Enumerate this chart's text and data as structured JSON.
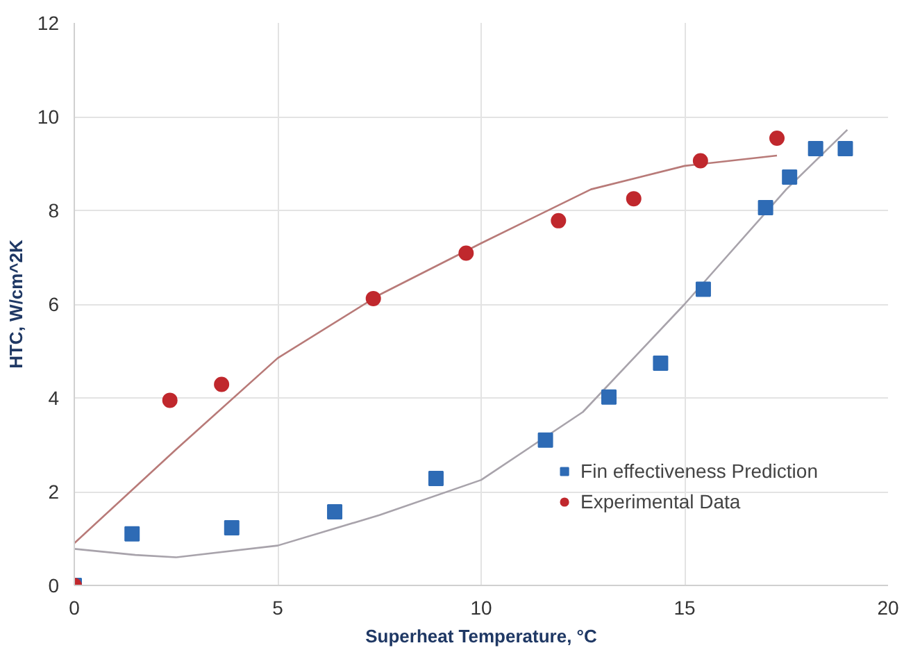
{
  "chart_data": {
    "type": "scatter",
    "xlabel": "Superheat Temperature, °C",
    "ylabel": "HTC, W/cm^2K",
    "xlim": [
      0,
      20
    ],
    "ylim": [
      0,
      12
    ],
    "xticks": [
      0,
      5,
      10,
      15,
      20
    ],
    "yticks": [
      0,
      2,
      4,
      6,
      8,
      10,
      12
    ],
    "grid": true,
    "legend": "bottom right",
    "series": [
      {
        "type": "line",
        "color": "#a8a3ab",
        "marker": "none",
        "x": [
          0,
          1.5,
          2.5,
          5,
          7.5,
          10,
          12.5,
          15,
          17.5,
          19
        ],
        "values": [
          0.78,
          0.65,
          0.6,
          0.85,
          1.5,
          2.25,
          3.7,
          6.0,
          8.45,
          9.72
        ]
      },
      {
        "type": "line",
        "color": "#b87a78",
        "marker": "none",
        "x": [
          0,
          2.5,
          5,
          7.5,
          10,
          12.7,
          15,
          17.27
        ],
        "values": [
          0.9,
          2.9,
          4.85,
          6.2,
          7.3,
          8.45,
          8.95,
          9.17
        ]
      },
      {
        "name": "Fin effectiveness Prediction",
        "color": "#2e6bb5",
        "marker": "square",
        "x": [
          0,
          1.42,
          3.87,
          6.4,
          8.89,
          11.58,
          13.14,
          14.41,
          15.46,
          16.99,
          17.58,
          18.22,
          18.95
        ],
        "values": [
          0,
          1.1,
          1.23,
          1.57,
          2.28,
          3.1,
          4.02,
          4.74,
          6.32,
          8.06,
          8.71,
          9.32,
          9.32
        ]
      },
      {
        "name": "Experimental Data",
        "color": "#c0282d",
        "marker": "circle",
        "x": [
          0,
          2.35,
          3.62,
          7.35,
          9.63,
          11.9,
          13.75,
          15.39,
          17.27
        ],
        "values": [
          0,
          3.95,
          4.29,
          6.12,
          7.09,
          7.78,
          8.25,
          9.06,
          9.54
        ]
      }
    ]
  }
}
